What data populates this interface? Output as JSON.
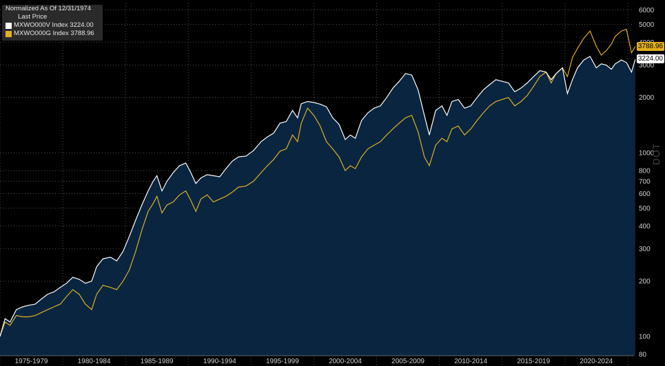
{
  "legend": {
    "title": "Normalized As Of 12/31/1974",
    "subtitle": "Last Price",
    "series1_label": "MXWO000V Index 3224.00",
    "series2_label": "MXWO000G Index 3788.96"
  },
  "badges": {
    "series1_last": "3224.00",
    "series2_last": "3788.96"
  },
  "watermark": "DOT",
  "colors": {
    "background": "#000000",
    "area_fill": "#0a2540",
    "series1": "#ffffff",
    "series2": "#e0b020",
    "grid": "#555555",
    "axis_text": "#d0d0d0"
  },
  "chart_data": {
    "type": "area",
    "y_scale": "log",
    "ylim": [
      80,
      6500
    ],
    "y_ticks": [
      80,
      100,
      200,
      300,
      400,
      500,
      600,
      700,
      800,
      1000,
      2000,
      3000,
      4000,
      5000,
      6000
    ],
    "x_range": [
      1975.0,
      2025.5
    ],
    "x_tick_labels": [
      "1975-1979",
      "1980-1984",
      "1985-1989",
      "1990-1994",
      "1995-1999",
      "2000-2004",
      "2005-2009",
      "2010-2014",
      "2015-2019",
      "2020-2024"
    ],
    "x_tick_positions": [
      1977.5,
      1982.5,
      1987.5,
      1992.5,
      1997.5,
      2002.5,
      2007.5,
      2012.5,
      2017.5,
      2022.5
    ],
    "series": [
      {
        "name": "MXWO000V Index",
        "color": "#ffffff",
        "filled": true,
        "points": [
          [
            1975.0,
            100
          ],
          [
            1975.4,
            125
          ],
          [
            1975.8,
            120
          ],
          [
            1976.3,
            140
          ],
          [
            1976.8,
            145
          ],
          [
            1977.3,
            148
          ],
          [
            1977.8,
            150
          ],
          [
            1978.3,
            160
          ],
          [
            1978.8,
            170
          ],
          [
            1979.3,
            175
          ],
          [
            1979.8,
            185
          ],
          [
            1980.3,
            195
          ],
          [
            1980.8,
            210
          ],
          [
            1981.3,
            205
          ],
          [
            1981.8,
            195
          ],
          [
            1982.3,
            200
          ],
          [
            1982.7,
            240
          ],
          [
            1983.2,
            265
          ],
          [
            1983.8,
            270
          ],
          [
            1984.3,
            258
          ],
          [
            1984.8,
            290
          ],
          [
            1985.3,
            350
          ],
          [
            1985.8,
            430
          ],
          [
            1986.3,
            520
          ],
          [
            1986.8,
            620
          ],
          [
            1987.2,
            700
          ],
          [
            1987.5,
            750
          ],
          [
            1987.9,
            620
          ],
          [
            1988.3,
            700
          ],
          [
            1988.8,
            780
          ],
          [
            1989.3,
            850
          ],
          [
            1989.8,
            880
          ],
          [
            1990.2,
            780
          ],
          [
            1990.6,
            680
          ],
          [
            1991.0,
            730
          ],
          [
            1991.5,
            760
          ],
          [
            1992.0,
            750
          ],
          [
            1992.5,
            740
          ],
          [
            1993.0,
            820
          ],
          [
            1993.5,
            900
          ],
          [
            1994.0,
            950
          ],
          [
            1994.6,
            960
          ],
          [
            1995.2,
            1030
          ],
          [
            1995.8,
            1150
          ],
          [
            1996.3,
            1220
          ],
          [
            1996.8,
            1280
          ],
          [
            1997.3,
            1450
          ],
          [
            1997.8,
            1480
          ],
          [
            1998.3,
            1700
          ],
          [
            1998.7,
            1550
          ],
          [
            1999.0,
            1850
          ],
          [
            1999.5,
            1900
          ],
          [
            2000.0,
            1880
          ],
          [
            2000.5,
            1840
          ],
          [
            2001.0,
            1780
          ],
          [
            2001.5,
            1550
          ],
          [
            2002.0,
            1430
          ],
          [
            2002.5,
            1180
          ],
          [
            2002.9,
            1250
          ],
          [
            2003.3,
            1200
          ],
          [
            2003.8,
            1500
          ],
          [
            2004.3,
            1650
          ],
          [
            2004.8,
            1750
          ],
          [
            2005.3,
            1800
          ],
          [
            2005.8,
            2000
          ],
          [
            2006.3,
            2250
          ],
          [
            2006.8,
            2450
          ],
          [
            2007.3,
            2700
          ],
          [
            2007.8,
            2650
          ],
          [
            2008.3,
            2200
          ],
          [
            2008.8,
            1600
          ],
          [
            2009.2,
            1250
          ],
          [
            2009.7,
            1700
          ],
          [
            2010.2,
            1800
          ],
          [
            2010.6,
            1600
          ],
          [
            2011.0,
            1900
          ],
          [
            2011.5,
            1950
          ],
          [
            2012.0,
            1750
          ],
          [
            2012.5,
            1800
          ],
          [
            2013.0,
            2000
          ],
          [
            2013.5,
            2200
          ],
          [
            2014.0,
            2350
          ],
          [
            2014.5,
            2500
          ],
          [
            2015.0,
            2450
          ],
          [
            2015.5,
            2400
          ],
          [
            2016.0,
            2150
          ],
          [
            2016.5,
            2250
          ],
          [
            2017.0,
            2400
          ],
          [
            2017.5,
            2600
          ],
          [
            2018.0,
            2800
          ],
          [
            2018.5,
            2750
          ],
          [
            2018.9,
            2500
          ],
          [
            2019.3,
            2700
          ],
          [
            2019.8,
            2900
          ],
          [
            2020.2,
            2100
          ],
          [
            2020.6,
            2500
          ],
          [
            2021.0,
            2900
          ],
          [
            2021.5,
            3200
          ],
          [
            2022.0,
            3350
          ],
          [
            2022.5,
            2900
          ],
          [
            2022.9,
            3050
          ],
          [
            2023.3,
            3000
          ],
          [
            2023.7,
            2850
          ],
          [
            2024.0,
            3050
          ],
          [
            2024.5,
            3200
          ],
          [
            2024.9,
            3100
          ],
          [
            2025.3,
            2750
          ],
          [
            2025.6,
            3224
          ]
        ]
      },
      {
        "name": "MXWO000G Index",
        "color": "#e0b020",
        "filled": false,
        "points": [
          [
            1975.0,
            100
          ],
          [
            1975.4,
            120
          ],
          [
            1975.8,
            115
          ],
          [
            1976.3,
            130
          ],
          [
            1976.8,
            128
          ],
          [
            1977.3,
            128
          ],
          [
            1977.8,
            130
          ],
          [
            1978.3,
            135
          ],
          [
            1978.8,
            140
          ],
          [
            1979.3,
            145
          ],
          [
            1979.8,
            150
          ],
          [
            1980.3,
            165
          ],
          [
            1980.8,
            180
          ],
          [
            1981.3,
            170
          ],
          [
            1981.8,
            150
          ],
          [
            1982.3,
            140
          ],
          [
            1982.7,
            170
          ],
          [
            1983.2,
            190
          ],
          [
            1983.8,
            185
          ],
          [
            1984.3,
            180
          ],
          [
            1984.8,
            200
          ],
          [
            1985.3,
            230
          ],
          [
            1985.8,
            290
          ],
          [
            1986.3,
            380
          ],
          [
            1986.8,
            480
          ],
          [
            1987.2,
            530
          ],
          [
            1987.5,
            580
          ],
          [
            1987.9,
            470
          ],
          [
            1988.3,
            520
          ],
          [
            1988.8,
            540
          ],
          [
            1989.3,
            590
          ],
          [
            1989.8,
            620
          ],
          [
            1990.2,
            550
          ],
          [
            1990.6,
            480
          ],
          [
            1991.0,
            560
          ],
          [
            1991.5,
            590
          ],
          [
            1992.0,
            540
          ],
          [
            1992.5,
            560
          ],
          [
            1993.0,
            580
          ],
          [
            1993.5,
            610
          ],
          [
            1994.0,
            650
          ],
          [
            1994.6,
            660
          ],
          [
            1995.2,
            700
          ],
          [
            1995.8,
            780
          ],
          [
            1996.3,
            850
          ],
          [
            1996.8,
            920
          ],
          [
            1997.3,
            1020
          ],
          [
            1997.8,
            1050
          ],
          [
            1998.3,
            1250
          ],
          [
            1998.7,
            1150
          ],
          [
            1999.0,
            1450
          ],
          [
            1999.5,
            1750
          ],
          [
            2000.0,
            1600
          ],
          [
            2000.5,
            1400
          ],
          [
            2001.0,
            1150
          ],
          [
            2001.5,
            1050
          ],
          [
            2002.0,
            950
          ],
          [
            2002.5,
            800
          ],
          [
            2002.9,
            850
          ],
          [
            2003.3,
            820
          ],
          [
            2003.8,
            950
          ],
          [
            2004.3,
            1050
          ],
          [
            2004.8,
            1100
          ],
          [
            2005.3,
            1150
          ],
          [
            2005.8,
            1250
          ],
          [
            2006.3,
            1350
          ],
          [
            2006.8,
            1450
          ],
          [
            2007.3,
            1550
          ],
          [
            2007.8,
            1600
          ],
          [
            2008.3,
            1300
          ],
          [
            2008.8,
            950
          ],
          [
            2009.2,
            850
          ],
          [
            2009.7,
            1100
          ],
          [
            2010.2,
            1200
          ],
          [
            2010.6,
            1150
          ],
          [
            2011.0,
            1350
          ],
          [
            2011.5,
            1400
          ],
          [
            2012.0,
            1250
          ],
          [
            2012.5,
            1350
          ],
          [
            2013.0,
            1500
          ],
          [
            2013.5,
            1650
          ],
          [
            2014.0,
            1800
          ],
          [
            2014.5,
            1900
          ],
          [
            2015.0,
            1950
          ],
          [
            2015.5,
            2000
          ],
          [
            2016.0,
            1800
          ],
          [
            2016.5,
            1900
          ],
          [
            2017.0,
            2050
          ],
          [
            2017.5,
            2300
          ],
          [
            2018.0,
            2600
          ],
          [
            2018.5,
            2750
          ],
          [
            2018.9,
            2400
          ],
          [
            2019.3,
            2700
          ],
          [
            2019.8,
            2900
          ],
          [
            2020.2,
            2600
          ],
          [
            2020.6,
            3300
          ],
          [
            2021.0,
            3700
          ],
          [
            2021.5,
            4200
          ],
          [
            2022.0,
            4600
          ],
          [
            2022.5,
            3800
          ],
          [
            2022.9,
            3400
          ],
          [
            2023.3,
            3600
          ],
          [
            2023.7,
            3900
          ],
          [
            2024.0,
            4300
          ],
          [
            2024.5,
            4600
          ],
          [
            2024.9,
            4700
          ],
          [
            2025.3,
            3500
          ],
          [
            2025.6,
            3789
          ]
        ]
      }
    ]
  }
}
